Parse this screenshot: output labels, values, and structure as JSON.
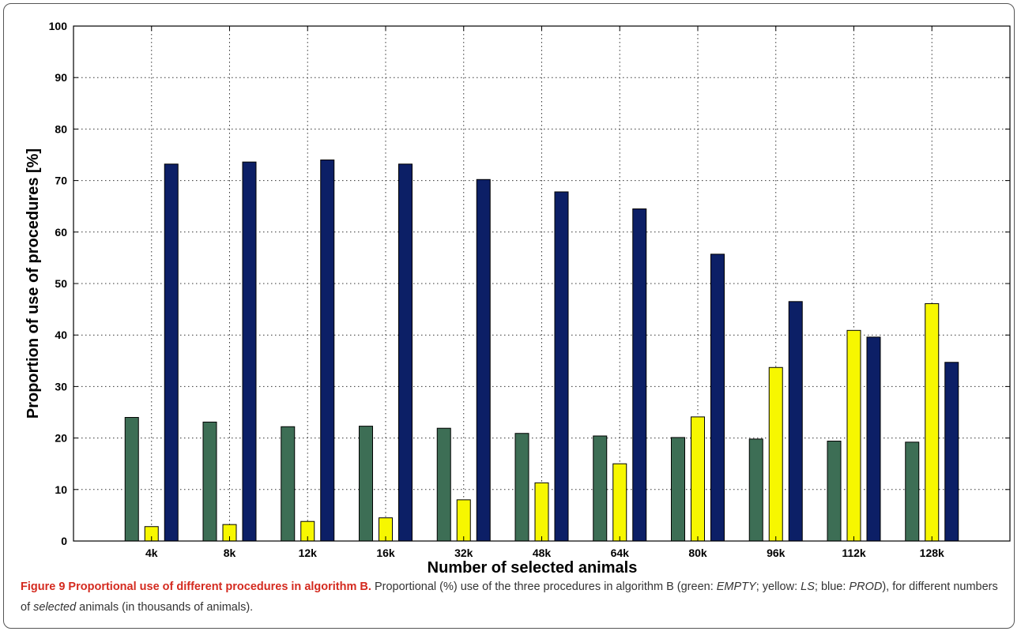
{
  "chart_data": {
    "type": "bar",
    "categories": [
      "4k",
      "8k",
      "12k",
      "16k",
      "32k",
      "48k",
      "64k",
      "80k",
      "96k",
      "112k",
      "128k"
    ],
    "series": [
      {
        "values": [
          24.0,
          23.1,
          22.2,
          22.3,
          21.9,
          20.9,
          20.4,
          20.1,
          19.8,
          19.4,
          19.2
        ],
        "color": "#3d6e55"
      },
      {
        "values": [
          2.8,
          3.2,
          3.8,
          4.5,
          8.0,
          11.3,
          15.0,
          24.1,
          33.7,
          40.9,
          46.1
        ],
        "color": "#f7f700"
      },
      {
        "values": [
          73.2,
          73.6,
          74.0,
          73.2,
          70.2,
          67.8,
          64.5,
          55.7,
          46.5,
          39.6,
          34.7
        ],
        "color": "#0c1f66"
      }
    ],
    "xlabel": "Number of selected animals",
    "ylabel": "Proportion of use of procedures [%]",
    "ylim": [
      0,
      100
    ],
    "yticks": [
      "0",
      "10",
      "20",
      "30",
      "40",
      "50",
      "60",
      "70",
      "80",
      "90",
      "100"
    ],
    "grid": true
  },
  "caption": {
    "label": "Figure 9 Proportional use of different procedures in algorithm B.",
    "text_1": " Proportional (%) use of the three procedures in algorithm B (green: ",
    "em_1": "EMPTY",
    "text_2": "; yellow: ",
    "em_2": "LS",
    "text_3": "; blue: ",
    "em_3": "PROD",
    "text_4": "), for different numbers of ",
    "em_4": "selected",
    "text_5": " animals (in thousands of animals)."
  }
}
